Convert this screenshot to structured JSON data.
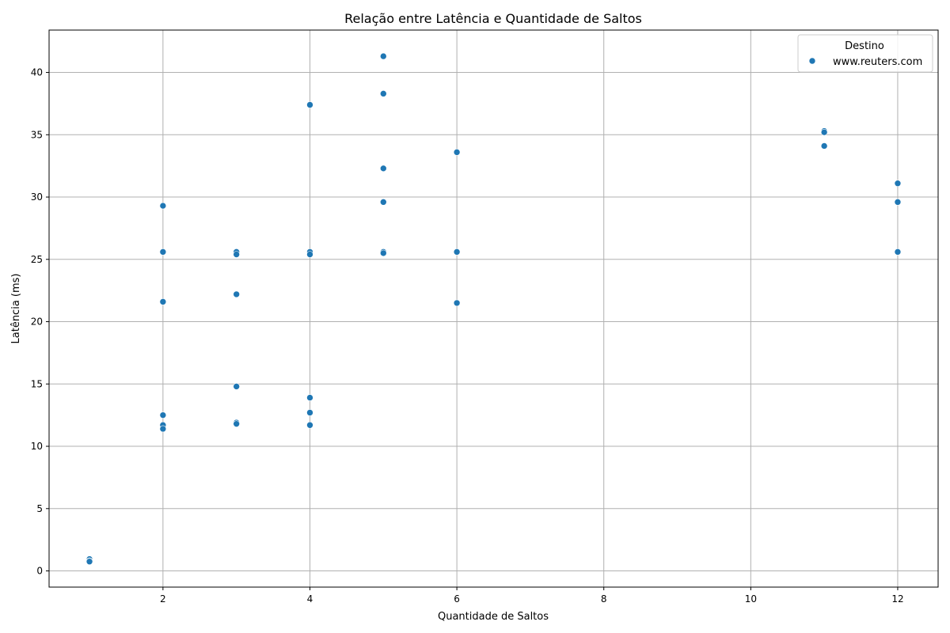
{
  "chart_data": {
    "type": "scatter",
    "title": "Relação entre Latência e Quantidade de Saltos",
    "xlabel": "Quantidade de Saltos",
    "ylabel": "Latência (ms)",
    "xlim": [
      0.45,
      12.55
    ],
    "ylim": [
      -1.3,
      43.4
    ],
    "xticks": [
      2,
      4,
      6,
      8,
      10,
      12
    ],
    "yticks": [
      0,
      5,
      10,
      15,
      20,
      25,
      30,
      35,
      40
    ],
    "grid": true,
    "legend": {
      "title": "Destino",
      "position": "top-right"
    },
    "colors": {
      "series": "#1f77b4",
      "grid": "#b0b0b0"
    },
    "series": [
      {
        "name": "www.reuters.com",
        "points": [
          [
            1,
            0.95
          ],
          [
            1,
            0.8
          ],
          [
            1,
            0.75
          ],
          [
            2,
            29.3
          ],
          [
            2,
            25.6
          ],
          [
            2,
            21.6
          ],
          [
            2,
            12.5
          ],
          [
            2,
            11.7
          ],
          [
            2,
            11.4
          ],
          [
            3,
            25.6
          ],
          [
            3,
            25.4
          ],
          [
            3,
            22.2
          ],
          [
            3,
            14.8
          ],
          [
            3,
            11.9
          ],
          [
            3,
            11.8
          ],
          [
            4,
            37.4
          ],
          [
            4,
            25.6
          ],
          [
            4,
            25.4
          ],
          [
            4,
            13.9
          ],
          [
            4,
            12.7
          ],
          [
            4,
            11.7
          ],
          [
            5,
            41.3
          ],
          [
            5,
            38.3
          ],
          [
            5,
            32.3
          ],
          [
            5,
            29.6
          ],
          [
            5,
            25.6
          ],
          [
            5,
            25.5
          ],
          [
            6,
            33.6
          ],
          [
            6,
            25.6
          ],
          [
            6,
            21.5
          ],
          [
            11,
            35.3
          ],
          [
            11,
            35.2
          ],
          [
            11,
            34.1
          ],
          [
            12,
            31.1
          ],
          [
            12,
            29.6
          ],
          [
            12,
            25.6
          ]
        ]
      }
    ]
  }
}
